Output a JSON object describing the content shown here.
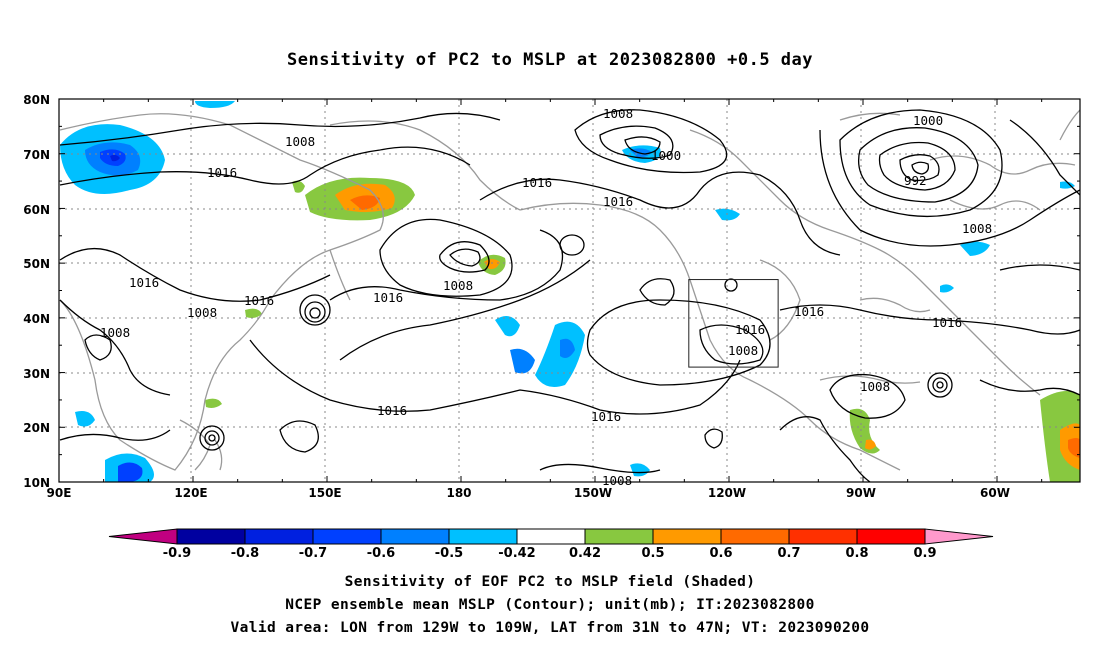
{
  "title": "Sensitivity of PC2 to MSLP at 2023082800 +0.5 day",
  "axes": {
    "lat_ticks": [
      "80N",
      "70N",
      "60N",
      "50N",
      "40N",
      "30N",
      "20N",
      "10N"
    ],
    "lon_ticks": [
      "90E",
      "120E",
      "150E",
      "180",
      "150W",
      "120W",
      "90W",
      "60W"
    ]
  },
  "contour_labels": [
    "1008",
    "1008",
    "1000",
    "1000",
    "992",
    "1016",
    "1016",
    "1016",
    "1008",
    "1008",
    "1016",
    "1016",
    "1008",
    "1016",
    "1008",
    "1016",
    "1016",
    "1008",
    "1016",
    "1016",
    "1008",
    "1008",
    "1016"
  ],
  "colorbar": {
    "labels": [
      "-0.9",
      "-0.8",
      "-0.7",
      "-0.6",
      "-0.5",
      "-0.42",
      "0.42",
      "0.5",
      "0.6",
      "0.7",
      "0.8",
      "0.9"
    ],
    "colors": [
      "#c00080",
      "#0000a0",
      "#0020e0",
      "#0040ff",
      "#0080ff",
      "#00c0ff",
      "#ffffff",
      "#88c840",
      "#ff9a00",
      "#ff6a00",
      "#ff3000",
      "#ff0000",
      "#ff99cc"
    ]
  },
  "valid_area": {
    "lon": [
      -129,
      -109
    ],
    "lat": [
      31,
      47
    ]
  },
  "captions": {
    "line1": "Sensitivity of EOF PC2 to MSLP field (Shaded)",
    "line2": "NCEP ensemble mean MSLP (Contour); unit(mb); IT:2023082800",
    "line3": "Valid area: LON from 129W to 109W, LAT from 31N to 47N; VT: 2023090200"
  }
}
